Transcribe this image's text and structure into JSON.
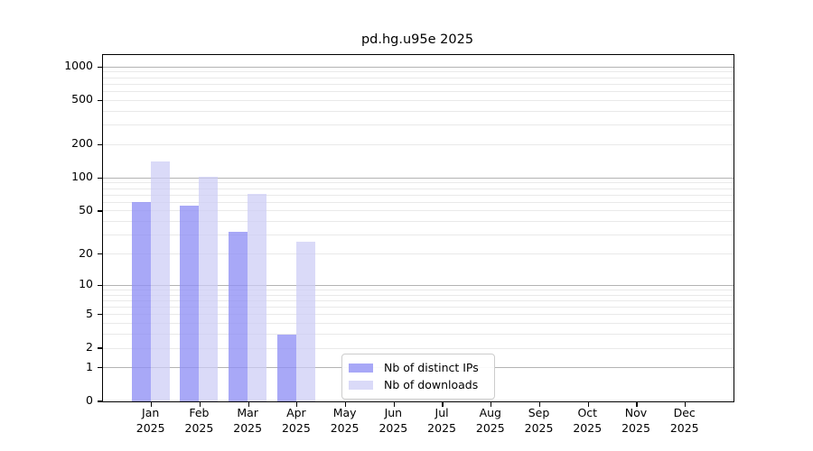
{
  "chart_data": {
    "type": "bar",
    "title": "pd.hg.u95e 2025",
    "categories": [
      "Jan 2025",
      "Feb 2025",
      "Mar 2025",
      "Apr 2025",
      "May 2025",
      "Jun 2025",
      "Jul 2025",
      "Aug 2025",
      "Sep 2025",
      "Oct 2025",
      "Nov 2025",
      "Dec 2025"
    ],
    "series": [
      {
        "name": "Nb of distinct IPs",
        "color": "#8f8ff5",
        "alpha": 0.78,
        "values": [
          60,
          56,
          32,
          3,
          0,
          0,
          0,
          0,
          0,
          0,
          0,
          0
        ]
      },
      {
        "name": "Nb of downloads",
        "color": "#ccccf5",
        "alpha": 0.72,
        "values": [
          140,
          103,
          71,
          26,
          0,
          0,
          0,
          0,
          0,
          0,
          0,
          0
        ]
      }
    ],
    "y_axis": {
      "scale": "log10(1+v)",
      "range": [
        0,
        1280
      ],
      "tick_values": [
        0,
        1,
        2,
        5,
        10,
        20,
        50,
        100,
        200,
        500,
        1000
      ],
      "major_gridlines": [
        1,
        10,
        100,
        1000
      ],
      "minor_gridlines": [
        2,
        3,
        4,
        5,
        6,
        7,
        8,
        9,
        20,
        30,
        40,
        50,
        60,
        70,
        80,
        90,
        200,
        300,
        400,
        500,
        600,
        700,
        800,
        900
      ]
    },
    "legend": {
      "position": "lower center"
    },
    "grid": true,
    "colors": {
      "major_grid": "#b3b3b3",
      "minor_grid": "#e9e9e9",
      "axis": "#000000",
      "background": "#ffffff"
    }
  }
}
